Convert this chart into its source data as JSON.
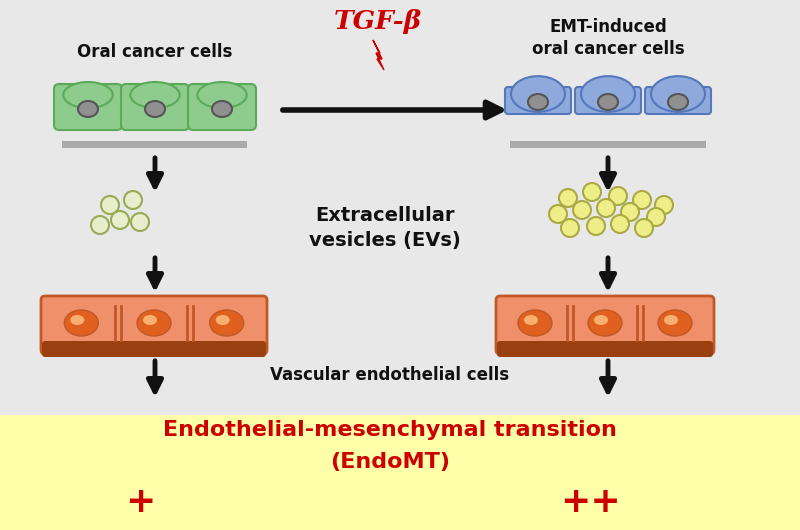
{
  "bg_color": "#e8e8e8",
  "bottom_bg_color": "#ffffaa",
  "oral_cancer_label": "Oral cancer cells",
  "emt_label": "EMT-induced\noral cancer cells",
  "tgfb_label": "TGF-β",
  "ev_label": "Extracellular\nvesicles (EVs)",
  "vascular_label": "Vascular endothelial cells",
  "endo_label": "Endothelial-mesenchymal transition",
  "endomt_label": "(EndoMT)",
  "plus_left": "+",
  "plus_right": "++",
  "cell_green_body": "#8ecc8e",
  "cell_green_border": "#5aaa5a",
  "cell_blue_body": "#8eaadd",
  "cell_blue_border": "#5577bb",
  "cell_body_color": "#f0906a",
  "cell_border_color": "#c05828",
  "cell_nucleus_color": "#e06020",
  "cell_base_color": "#9a4010",
  "platform_color": "#aaaaaa",
  "gray_nucleus": "#909090",
  "gray_nucleus_border": "#555555",
  "ev_white_fill": "#e8eecc",
  "ev_white_border": "#99aa55",
  "ev_yellow_fill": "#eeee88",
  "ev_yellow_border": "#aaaa44",
  "red_color": "#cc0000",
  "black_color": "#111111"
}
